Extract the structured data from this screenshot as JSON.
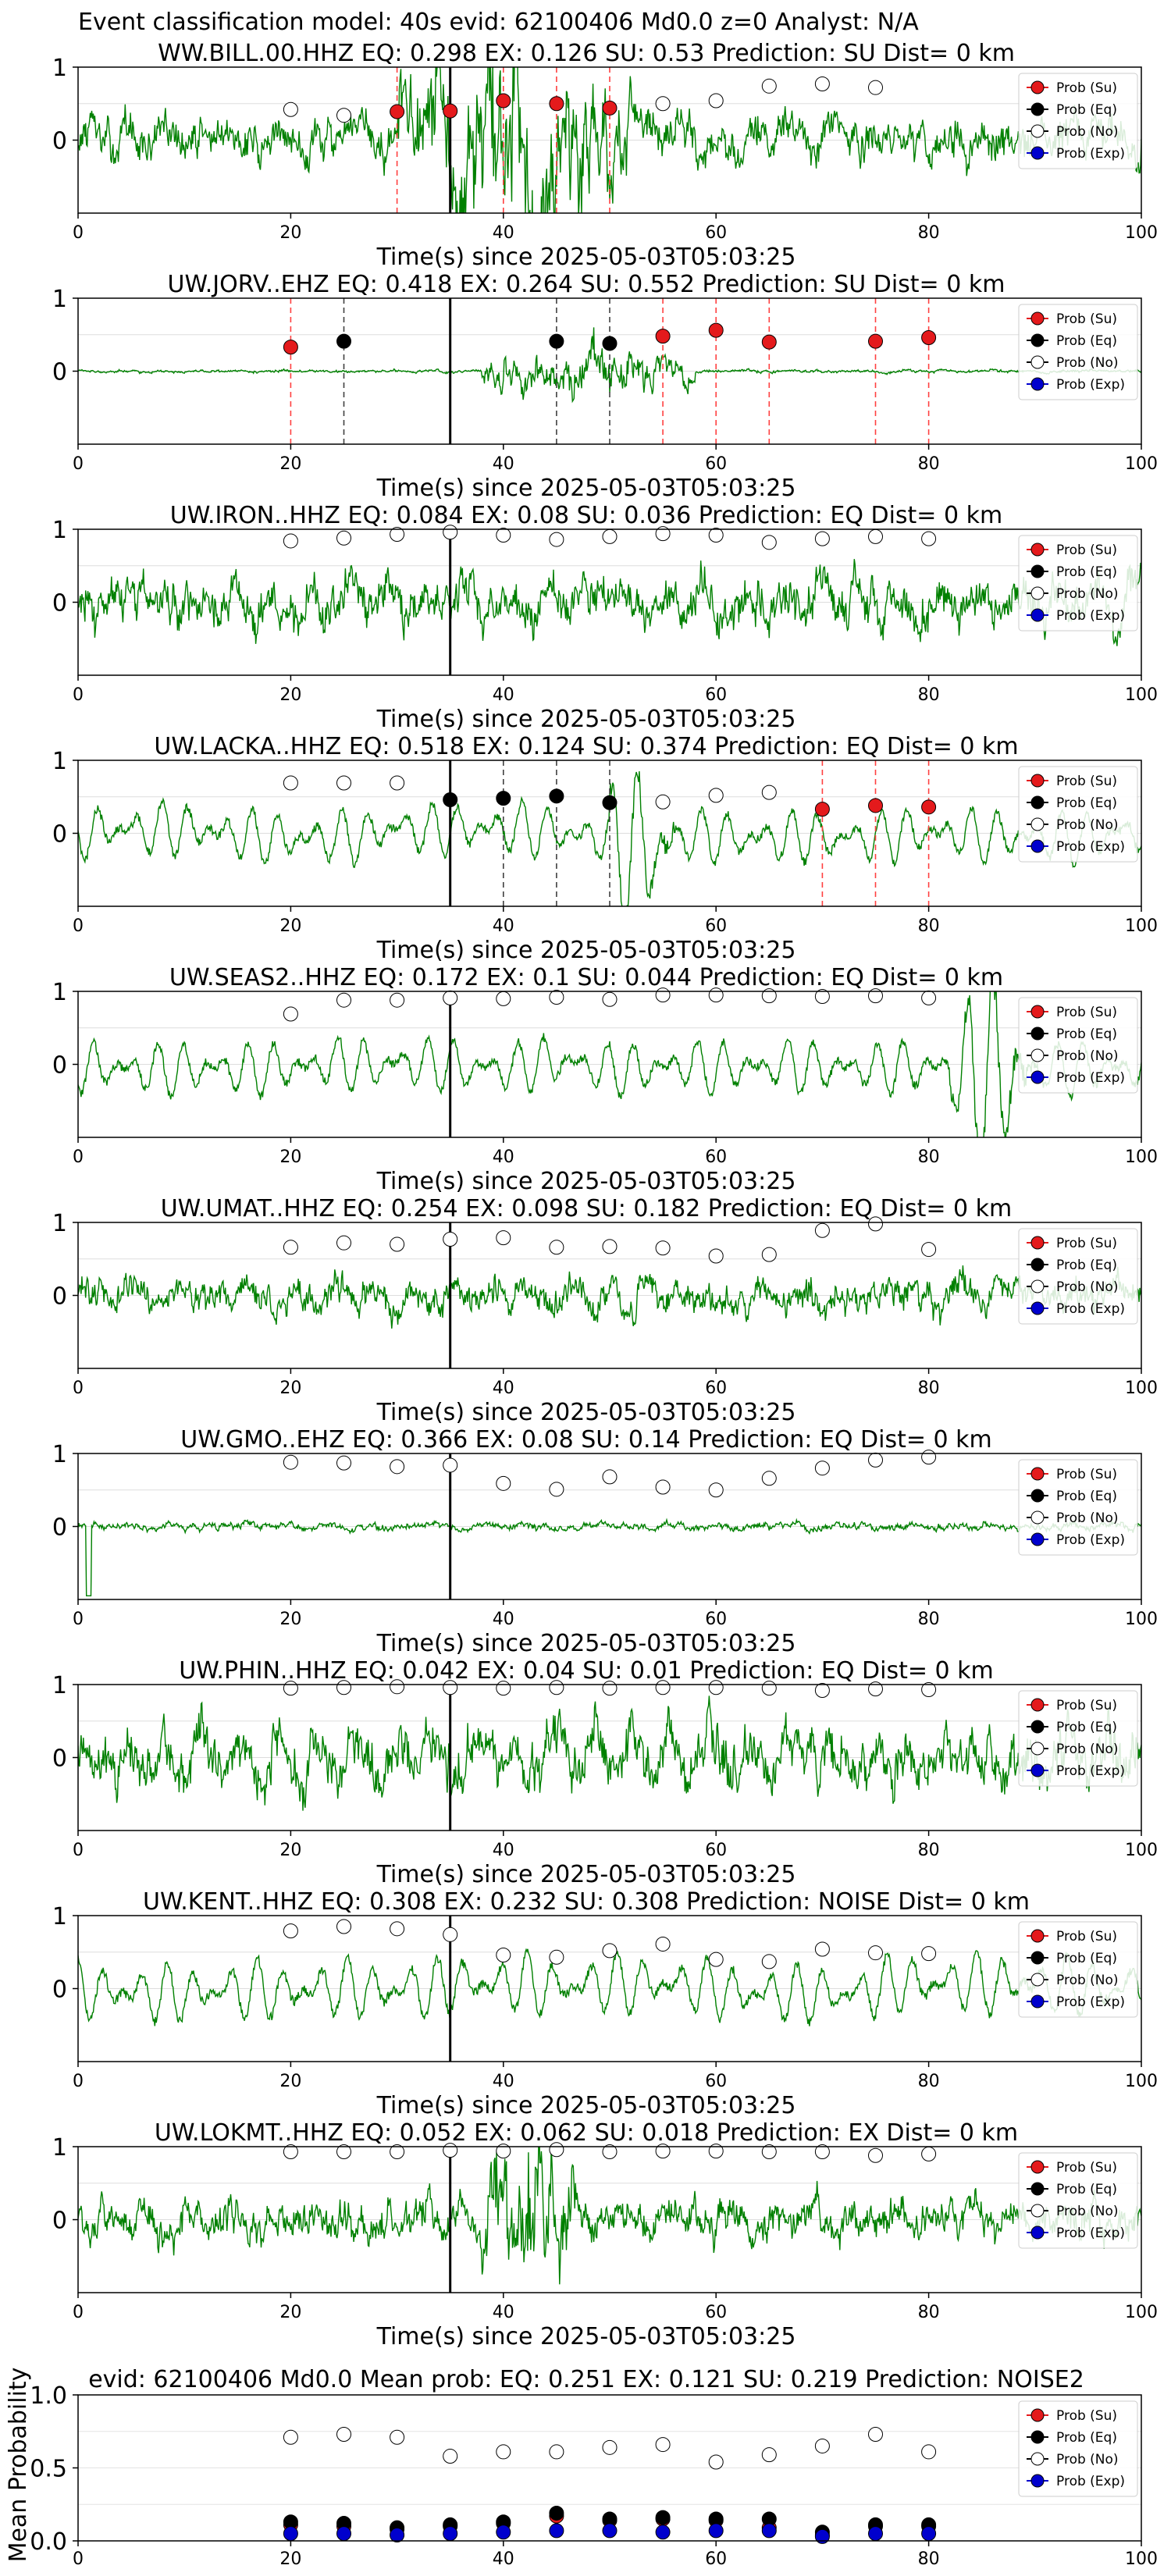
{
  "figure": {
    "suptitle": "Event classification model: 40s evid: 62100406 Md0.0 z=0 Analyst: N/A"
  },
  "legend_entries": [
    "Prob (Su)",
    "Prob (Eq)",
    "Prob (No)",
    "Prob (Exp)"
  ],
  "colors": {
    "waveform": "#008000",
    "su": "#e41a1c",
    "eq": "#000000",
    "no": "#ffffff",
    "exp": "#0000cd",
    "su_line": "#ff4040",
    "eq_line": "#404040"
  },
  "chart_data": [
    {
      "type": "line",
      "title": "WW.BILL.00.HHZ   EQ: 0.298  EX: 0.126  SU: 0.53   Prediction: SU    Dist= 0 km",
      "xlabel": "Time(s) since 2025-05-03T05:03:25",
      "xlim": [
        0,
        100
      ],
      "ylim": [
        -1,
        1
      ],
      "xticks": [
        0,
        20,
        40,
        60,
        80,
        100
      ],
      "yticks": [
        0,
        1
      ],
      "event_line": 35,
      "waveform": {
        "amplitude": 0.45,
        "style": "noisy",
        "burst": [
          30,
          52,
          1.9
        ]
      },
      "markers": [
        {
          "x": 20,
          "y": 0.42,
          "cls": "no"
        },
        {
          "x": 25,
          "y": 0.34,
          "cls": "no"
        },
        {
          "x": 30,
          "y": 0.39,
          "cls": "su"
        },
        {
          "x": 35,
          "y": 0.4,
          "cls": "su"
        },
        {
          "x": 40,
          "y": 0.54,
          "cls": "su"
        },
        {
          "x": 45,
          "y": 0.5,
          "cls": "su"
        },
        {
          "x": 50,
          "y": 0.44,
          "cls": "su"
        },
        {
          "x": 55,
          "y": 0.5,
          "cls": "no"
        },
        {
          "x": 60,
          "y": 0.54,
          "cls": "no"
        },
        {
          "x": 65,
          "y": 0.74,
          "cls": "no"
        },
        {
          "x": 70,
          "y": 0.77,
          "cls": "no"
        },
        {
          "x": 75,
          "y": 0.72,
          "cls": "no"
        }
      ],
      "su_lines": [
        30,
        40,
        45,
        50
      ],
      "eq_lines": []
    },
    {
      "type": "line",
      "title": "UW.JORV..EHZ   EQ: 0.418  EX: 0.264  SU: 0.552   Prediction: SU    Dist= 0 km",
      "xlabel": "Time(s) since 2025-05-03T05:03:25",
      "xlim": [
        0,
        100
      ],
      "ylim": [
        -1,
        1
      ],
      "xticks": [
        0,
        20,
        40,
        60,
        80,
        100
      ],
      "yticks": [
        0,
        1
      ],
      "event_line": 35,
      "waveform": {
        "amplitude": 0.03,
        "style": "noisy",
        "burst": [
          38,
          58,
          0.6
        ]
      },
      "markers": [
        {
          "x": 20,
          "y": 0.33,
          "cls": "su"
        },
        {
          "x": 25,
          "y": 0.41,
          "cls": "eq"
        },
        {
          "x": 45,
          "y": 0.41,
          "cls": "eq"
        },
        {
          "x": 50,
          "y": 0.38,
          "cls": "eq"
        },
        {
          "x": 55,
          "y": 0.48,
          "cls": "su"
        },
        {
          "x": 60,
          "y": 0.56,
          "cls": "su"
        },
        {
          "x": 65,
          "y": 0.4,
          "cls": "su"
        },
        {
          "x": 75,
          "y": 0.41,
          "cls": "su"
        },
        {
          "x": 80,
          "y": 0.46,
          "cls": "su"
        }
      ],
      "su_lines": [
        20,
        55,
        60,
        65,
        75,
        80
      ],
      "eq_lines": [
        25,
        45,
        50
      ]
    },
    {
      "type": "line",
      "title": "UW.IRON..HHZ   EQ: 0.084  EX: 0.08  SU: 0.036   Prediction: EQ    Dist= 0 km",
      "xlabel": "Time(s) since 2025-05-03T05:03:25",
      "xlim": [
        0,
        100
      ],
      "ylim": [
        -1,
        1
      ],
      "xticks": [
        0,
        20,
        40,
        60,
        80,
        100
      ],
      "yticks": [
        0,
        1
      ],
      "event_line": 35,
      "waveform": {
        "amplitude": 0.5,
        "style": "noisy"
      },
      "markers": [
        {
          "x": 20,
          "y": 0.84,
          "cls": "no"
        },
        {
          "x": 25,
          "y": 0.88,
          "cls": "no"
        },
        {
          "x": 30,
          "y": 0.93,
          "cls": "no"
        },
        {
          "x": 35,
          "y": 0.96,
          "cls": "no"
        },
        {
          "x": 40,
          "y": 0.92,
          "cls": "no"
        },
        {
          "x": 45,
          "y": 0.86,
          "cls": "no"
        },
        {
          "x": 50,
          "y": 0.9,
          "cls": "no"
        },
        {
          "x": 55,
          "y": 0.94,
          "cls": "no"
        },
        {
          "x": 60,
          "y": 0.92,
          "cls": "no"
        },
        {
          "x": 65,
          "y": 0.82,
          "cls": "no"
        },
        {
          "x": 70,
          "y": 0.87,
          "cls": "no"
        },
        {
          "x": 75,
          "y": 0.9,
          "cls": "no"
        },
        {
          "x": 80,
          "y": 0.87,
          "cls": "no"
        }
      ],
      "su_lines": [],
      "eq_lines": []
    },
    {
      "type": "line",
      "title": "UW.LACKA..HHZ   EQ: 0.518  EX: 0.124  SU: 0.374   Prediction: EQ    Dist= 0 km",
      "xlabel": "Time(s) since 2025-05-03T05:03:25",
      "xlim": [
        0,
        100
      ],
      "ylim": [
        -1,
        1
      ],
      "xticks": [
        0,
        20,
        40,
        60,
        80,
        100
      ],
      "yticks": [
        0,
        1
      ],
      "event_line": 35,
      "waveform": {
        "amplitude": 0.45,
        "style": "wavy",
        "burst": [
          50,
          56,
          1.6
        ]
      },
      "markers": [
        {
          "x": 20,
          "y": 0.69,
          "cls": "no"
        },
        {
          "x": 25,
          "y": 0.69,
          "cls": "no"
        },
        {
          "x": 30,
          "y": 0.69,
          "cls": "no"
        },
        {
          "x": 35,
          "y": 0.46,
          "cls": "eq"
        },
        {
          "x": 40,
          "y": 0.48,
          "cls": "eq"
        },
        {
          "x": 45,
          "y": 0.51,
          "cls": "eq"
        },
        {
          "x": 50,
          "y": 0.42,
          "cls": "eq"
        },
        {
          "x": 55,
          "y": 0.43,
          "cls": "no"
        },
        {
          "x": 60,
          "y": 0.52,
          "cls": "no"
        },
        {
          "x": 65,
          "y": 0.56,
          "cls": "no"
        },
        {
          "x": 70,
          "y": 0.33,
          "cls": "su"
        },
        {
          "x": 75,
          "y": 0.38,
          "cls": "su"
        },
        {
          "x": 80,
          "y": 0.36,
          "cls": "su"
        }
      ],
      "su_lines": [
        70,
        75,
        80
      ],
      "eq_lines": [
        35,
        40,
        45,
        50
      ]
    },
    {
      "type": "line",
      "title": "UW.SEAS2..HHZ   EQ: 0.172  EX: 0.1  SU: 0.044   Prediction: EQ    Dist= 0 km",
      "xlabel": "Time(s) since 2025-05-03T05:03:25",
      "xlim": [
        0,
        100
      ],
      "ylim": [
        -1,
        1
      ],
      "xticks": [
        0,
        20,
        40,
        60,
        80,
        100
      ],
      "yticks": [
        0,
        1
      ],
      "event_line": 35,
      "waveform": {
        "amplitude": 0.45,
        "style": "wavy",
        "burst": [
          82,
          90,
          1.8
        ]
      },
      "markers": [
        {
          "x": 20,
          "y": 0.69,
          "cls": "no"
        },
        {
          "x": 25,
          "y": 0.88,
          "cls": "no"
        },
        {
          "x": 30,
          "y": 0.88,
          "cls": "no"
        },
        {
          "x": 35,
          "y": 0.91,
          "cls": "no"
        },
        {
          "x": 40,
          "y": 0.9,
          "cls": "no"
        },
        {
          "x": 45,
          "y": 0.92,
          "cls": "no"
        },
        {
          "x": 50,
          "y": 0.89,
          "cls": "no"
        },
        {
          "x": 55,
          "y": 0.95,
          "cls": "no"
        },
        {
          "x": 60,
          "y": 0.95,
          "cls": "no"
        },
        {
          "x": 65,
          "y": 0.94,
          "cls": "no"
        },
        {
          "x": 70,
          "y": 0.93,
          "cls": "no"
        },
        {
          "x": 75,
          "y": 0.94,
          "cls": "no"
        },
        {
          "x": 80,
          "y": 0.91,
          "cls": "no"
        }
      ],
      "su_lines": [],
      "eq_lines": []
    },
    {
      "type": "line",
      "title": "UW.UMAT..HHZ   EQ: 0.254  EX: 0.098  SU: 0.182   Prediction: EQ    Dist= 0 km",
      "xlabel": "Time(s) since 2025-05-03T05:03:25",
      "xlim": [
        0,
        100
      ],
      "ylim": [
        -1,
        1
      ],
      "xticks": [
        0,
        20,
        40,
        60,
        80,
        100
      ],
      "yticks": [
        0,
        1
      ],
      "event_line": 35,
      "waveform": {
        "amplitude": 0.35,
        "style": "noisy"
      },
      "markers": [
        {
          "x": 20,
          "y": 0.66,
          "cls": "no"
        },
        {
          "x": 25,
          "y": 0.72,
          "cls": "no"
        },
        {
          "x": 30,
          "y": 0.7,
          "cls": "no"
        },
        {
          "x": 35,
          "y": 0.77,
          "cls": "no"
        },
        {
          "x": 40,
          "y": 0.79,
          "cls": "no"
        },
        {
          "x": 45,
          "y": 0.66,
          "cls": "no"
        },
        {
          "x": 50,
          "y": 0.67,
          "cls": "no"
        },
        {
          "x": 55,
          "y": 0.65,
          "cls": "no"
        },
        {
          "x": 60,
          "y": 0.54,
          "cls": "no"
        },
        {
          "x": 65,
          "y": 0.56,
          "cls": "no"
        },
        {
          "x": 70,
          "y": 0.89,
          "cls": "no"
        },
        {
          "x": 75,
          "y": 0.98,
          "cls": "no"
        },
        {
          "x": 80,
          "y": 0.63,
          "cls": "no"
        }
      ],
      "su_lines": [],
      "eq_lines": []
    },
    {
      "type": "line",
      "title": "UW.GMO..EHZ   EQ: 0.366  EX: 0.08  SU: 0.14   Prediction: EQ    Dist= 0 km",
      "xlabel": "Time(s) since 2025-05-03T05:03:25",
      "xlim": [
        0,
        100
      ],
      "ylim": [
        -1,
        1
      ],
      "xticks": [
        0,
        20,
        40,
        60,
        80,
        100
      ],
      "yticks": [
        0,
        1
      ],
      "event_line": 35,
      "waveform": {
        "amplitude": 0.08,
        "style": "noisy",
        "spike": [
          1,
          -0.95
        ]
      },
      "markers": [
        {
          "x": 20,
          "y": 0.88,
          "cls": "no"
        },
        {
          "x": 25,
          "y": 0.87,
          "cls": "no"
        },
        {
          "x": 30,
          "y": 0.82,
          "cls": "no"
        },
        {
          "x": 35,
          "y": 0.84,
          "cls": "no"
        },
        {
          "x": 40,
          "y": 0.59,
          "cls": "no"
        },
        {
          "x": 45,
          "y": 0.51,
          "cls": "no"
        },
        {
          "x": 50,
          "y": 0.68,
          "cls": "no"
        },
        {
          "x": 55,
          "y": 0.54,
          "cls": "no"
        },
        {
          "x": 60,
          "y": 0.5,
          "cls": "no"
        },
        {
          "x": 65,
          "y": 0.66,
          "cls": "no"
        },
        {
          "x": 70,
          "y": 0.8,
          "cls": "no"
        },
        {
          "x": 75,
          "y": 0.91,
          "cls": "no"
        },
        {
          "x": 80,
          "y": 0.95,
          "cls": "no"
        }
      ],
      "su_lines": [],
      "eq_lines": []
    },
    {
      "type": "line",
      "title": "UW.PHIN..HHZ   EQ: 0.042  EX: 0.04  SU: 0.01   Prediction: EQ    Dist= 0 km",
      "xlabel": "Time(s) since 2025-05-03T05:03:25",
      "xlim": [
        0,
        100
      ],
      "ylim": [
        -1,
        1
      ],
      "xticks": [
        0,
        20,
        40,
        60,
        80,
        100
      ],
      "yticks": [
        0,
        1
      ],
      "event_line": 35,
      "waveform": {
        "amplitude": 0.6,
        "style": "noisy"
      },
      "markers": [
        {
          "x": 20,
          "y": 0.95,
          "cls": "no"
        },
        {
          "x": 25,
          "y": 0.96,
          "cls": "no"
        },
        {
          "x": 30,
          "y": 0.97,
          "cls": "no"
        },
        {
          "x": 35,
          "y": 0.96,
          "cls": "no"
        },
        {
          "x": 40,
          "y": 0.95,
          "cls": "no"
        },
        {
          "x": 45,
          "y": 0.96,
          "cls": "no"
        },
        {
          "x": 50,
          "y": 0.95,
          "cls": "no"
        },
        {
          "x": 55,
          "y": 0.96,
          "cls": "no"
        },
        {
          "x": 60,
          "y": 0.96,
          "cls": "no"
        },
        {
          "x": 65,
          "y": 0.95,
          "cls": "no"
        },
        {
          "x": 70,
          "y": 0.92,
          "cls": "no"
        },
        {
          "x": 75,
          "y": 0.94,
          "cls": "no"
        },
        {
          "x": 80,
          "y": 0.93,
          "cls": "no"
        }
      ],
      "su_lines": [],
      "eq_lines": []
    },
    {
      "type": "line",
      "title": "UW.KENT..HHZ   EQ: 0.308  EX: 0.232  SU: 0.308   Prediction: NOISE    Dist= 0 km",
      "xlabel": "Time(s) since 2025-05-03T05:03:25",
      "xlim": [
        0,
        100
      ],
      "ylim": [
        -1,
        1
      ],
      "xticks": [
        0,
        20,
        40,
        60,
        80,
        100
      ],
      "yticks": [
        0,
        1
      ],
      "event_line": 35,
      "waveform": {
        "amplitude": 0.5,
        "style": "wavy"
      },
      "markers": [
        {
          "x": 20,
          "y": 0.79,
          "cls": "no"
        },
        {
          "x": 25,
          "y": 0.85,
          "cls": "no"
        },
        {
          "x": 30,
          "y": 0.82,
          "cls": "no"
        },
        {
          "x": 35,
          "y": 0.74,
          "cls": "no"
        },
        {
          "x": 40,
          "y": 0.46,
          "cls": "no"
        },
        {
          "x": 45,
          "y": 0.43,
          "cls": "no"
        },
        {
          "x": 50,
          "y": 0.52,
          "cls": "no"
        },
        {
          "x": 55,
          "y": 0.61,
          "cls": "no"
        },
        {
          "x": 60,
          "y": 0.4,
          "cls": "no"
        },
        {
          "x": 65,
          "y": 0.37,
          "cls": "no"
        },
        {
          "x": 70,
          "y": 0.54,
          "cls": "no"
        },
        {
          "x": 75,
          "y": 0.49,
          "cls": "no"
        },
        {
          "x": 80,
          "y": 0.48,
          "cls": "no"
        }
      ],
      "su_lines": [],
      "eq_lines": []
    },
    {
      "type": "line",
      "title": "UW.LOKMT..HHZ   EQ: 0.052  EX: 0.062  SU: 0.018   Prediction: EX    Dist= 0 km",
      "xlabel": "Time(s) since 2025-05-03T05:03:25",
      "xlim": [
        0,
        100
      ],
      "ylim": [
        -1,
        1
      ],
      "xticks": [
        0,
        20,
        40,
        60,
        80,
        100
      ],
      "yticks": [
        0,
        1
      ],
      "event_line": 35,
      "waveform": {
        "amplitude": 0.4,
        "style": "noisy",
        "burst": [
          38,
          47,
          1.6
        ]
      },
      "markers": [
        {
          "x": 20,
          "y": 0.93,
          "cls": "no"
        },
        {
          "x": 25,
          "y": 0.93,
          "cls": "no"
        },
        {
          "x": 30,
          "y": 0.93,
          "cls": "no"
        },
        {
          "x": 35,
          "y": 0.95,
          "cls": "no"
        },
        {
          "x": 40,
          "y": 0.94,
          "cls": "no"
        },
        {
          "x": 45,
          "y": 0.96,
          "cls": "no"
        },
        {
          "x": 50,
          "y": 0.93,
          "cls": "no"
        },
        {
          "x": 55,
          "y": 0.94,
          "cls": "no"
        },
        {
          "x": 60,
          "y": 0.94,
          "cls": "no"
        },
        {
          "x": 65,
          "y": 0.93,
          "cls": "no"
        },
        {
          "x": 70,
          "y": 0.93,
          "cls": "no"
        },
        {
          "x": 75,
          "y": 0.88,
          "cls": "no"
        },
        {
          "x": 80,
          "y": 0.9,
          "cls": "no"
        }
      ],
      "su_lines": [],
      "eq_lines": []
    },
    {
      "type": "scatter",
      "title": "evid: 62100406  Md0.0   Mean prob:   EQ: 0.251  EX: 0.121  SU: 0.219   Prediction: NOISE2",
      "xlabel": "",
      "ylabel": "Mean Probability",
      "xlim": [
        0,
        100
      ],
      "ylim": [
        0,
        1
      ],
      "xticks": [
        0,
        20,
        40,
        60,
        80,
        100
      ],
      "yticks": [
        0.0,
        0.5,
        1.0
      ],
      "x": [
        20,
        25,
        30,
        35,
        40,
        45,
        50,
        55,
        60,
        65,
        70,
        75,
        80
      ],
      "series": [
        {
          "cls": "no",
          "values": [
            0.71,
            0.73,
            0.71,
            0.58,
            0.61,
            0.61,
            0.64,
            0.66,
            0.54,
            0.59,
            0.65,
            0.73,
            0.61
          ]
        },
        {
          "cls": "su",
          "values": [
            0.11,
            0.1,
            0.08,
            0.1,
            0.12,
            0.17,
            0.14,
            0.15,
            0.14,
            0.09,
            0.04,
            0.1,
            0.1
          ]
        },
        {
          "cls": "eq",
          "values": [
            0.13,
            0.12,
            0.09,
            0.11,
            0.13,
            0.19,
            0.15,
            0.16,
            0.15,
            0.15,
            0.06,
            0.11,
            0.11
          ]
        },
        {
          "cls": "exp",
          "values": [
            0.05,
            0.05,
            0.04,
            0.05,
            0.06,
            0.07,
            0.07,
            0.06,
            0.07,
            0.07,
            0.03,
            0.05,
            0.05
          ]
        }
      ]
    }
  ]
}
